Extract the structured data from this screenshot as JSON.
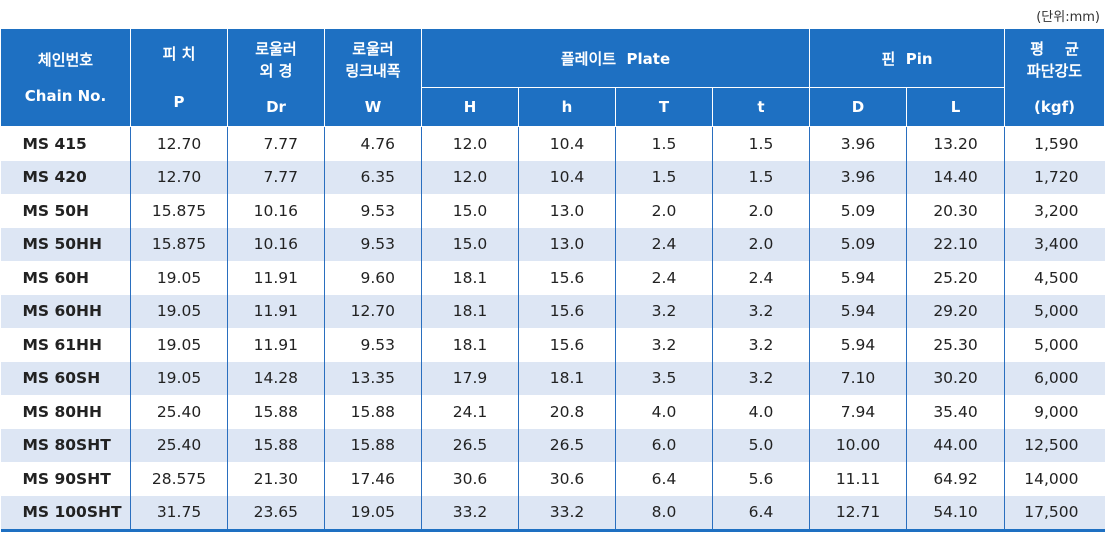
{
  "unit_note": "(단위:mm)",
  "header": {
    "chain_no": [
      "체인번호",
      "Chain No."
    ],
    "pitch": [
      "피 치",
      "P"
    ],
    "roller_od": [
      "로울러",
      "외 경",
      "Dr"
    ],
    "roller_width": [
      "로울러",
      "링크내폭",
      "W"
    ],
    "plate": "플레이트  Plate",
    "plate_H": "H",
    "plate_h": "h",
    "plate_T": "T",
    "plate_t": "t",
    "pin": "핀  Pin",
    "pin_D": "D",
    "pin_L": "L",
    "strength": [
      "평    균",
      "파단강도",
      "(kgf)"
    ]
  },
  "rows": [
    [
      "MS 415",
      "12.70",
      "7.77",
      "4.76",
      "12.0",
      "10.4",
      "1.5",
      "1.5",
      "3.96",
      "13.20",
      "1,590"
    ],
    [
      "MS 420",
      "12.70",
      "7.77",
      "6.35",
      "12.0",
      "10.4",
      "1.5",
      "1.5",
      "3.96",
      "14.40",
      "1,720"
    ],
    [
      "MS 50H",
      "15.875",
      "10.16",
      "9.53",
      "15.0",
      "13.0",
      "2.0",
      "2.0",
      "5.09",
      "20.30",
      "3,200"
    ],
    [
      "MS 50HH",
      "15.875",
      "10.16",
      "9.53",
      "15.0",
      "13.0",
      "2.4",
      "2.0",
      "5.09",
      "22.10",
      "3,400"
    ],
    [
      "MS 60H",
      "19.05",
      "11.91",
      "9.60",
      "18.1",
      "15.6",
      "2.4",
      "2.4",
      "5.94",
      "25.20",
      "4,500"
    ],
    [
      "MS 60HH",
      "19.05",
      "11.91",
      "12.70",
      "18.1",
      "15.6",
      "3.2",
      "3.2",
      "5.94",
      "29.20",
      "5,000"
    ],
    [
      "MS 61HH",
      "19.05",
      "11.91",
      "9.53",
      "18.1",
      "15.6",
      "3.2",
      "3.2",
      "5.94",
      "25.30",
      "5,000"
    ],
    [
      "MS 60SH",
      "19.05",
      "14.28",
      "13.35",
      "17.9",
      "18.1",
      "3.5",
      "3.2",
      "7.10",
      "30.20",
      "6,000"
    ],
    [
      "MS 80HH",
      "25.40",
      "15.88",
      "15.88",
      "24.1",
      "20.8",
      "4.0",
      "4.0",
      "7.94",
      "35.40",
      "9,000"
    ],
    [
      "MS 80SHT",
      "25.40",
      "15.88",
      "15.88",
      "26.5",
      "26.5",
      "6.0",
      "5.0",
      "10.00",
      "44.00",
      "12,500"
    ],
    [
      "MS 90SHT",
      "28.575",
      "21.30",
      "17.46",
      "30.6",
      "30.6",
      "6.4",
      "5.6",
      "11.11",
      "64.92",
      "14,000"
    ],
    [
      "MS 100SHT",
      "31.75",
      "23.65",
      "19.05",
      "33.2",
      "33.2",
      "8.0",
      "6.4",
      "12.71",
      "54.10",
      "17,500"
    ]
  ]
}
